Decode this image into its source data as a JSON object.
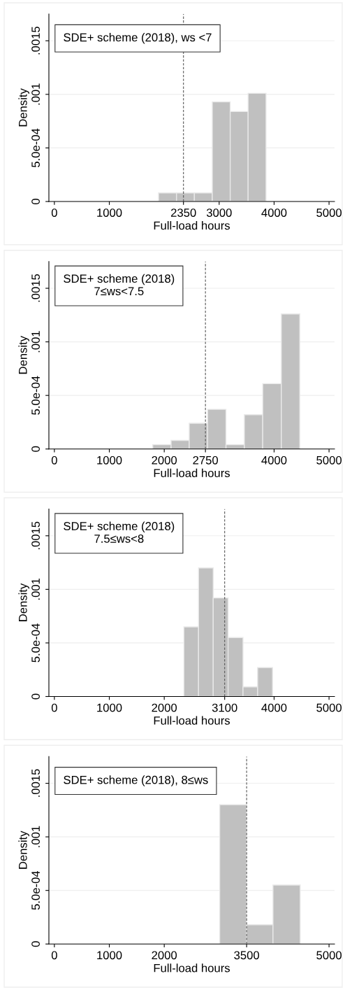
{
  "chart_data": [
    {
      "type": "histogram",
      "annotations": [
        "SDE+ scheme (2018), ws <7"
      ],
      "xlabel": "Full-load hours",
      "ylabel": "Density",
      "color": "#c0c0c0",
      "grid": "y",
      "bins": [
        1897,
        2223,
        2549,
        2875,
        3201,
        3527,
        3853
      ],
      "values": [
        8e-05,
        8e-05,
        8e-05,
        0.00093,
        0.00084,
        0.00101
      ],
      "xlim": [
        -100,
        5100
      ],
      "ylim": [
        0,
        0.00175
      ],
      "xticks": [
        0,
        1000,
        2350,
        3000,
        4000,
        5000
      ],
      "yticks": [
        {
          "value": 0,
          "label": "0"
        },
        {
          "value": 0.0005,
          "label": "5.0e-04"
        },
        {
          "value": 0.001,
          "label": ".001"
        },
        {
          "value": 0.0015,
          "label": ".0015"
        }
      ],
      "ref_lines": [
        {
          "axis": "x",
          "value": 2350,
          "line_style": "dashed",
          "color": "#555555"
        }
      ]
    },
    {
      "type": "histogram",
      "annotations": [
        "SDE+ scheme (2018)\n7≤ws<7.5"
      ],
      "xlabel": "Full-load hours",
      "ylabel": "Density",
      "color": "#c0c0c0",
      "grid": "y",
      "bins": [
        1791,
        2125,
        2455,
        2790,
        3124,
        3459,
        3793,
        4132,
        4467
      ],
      "values": [
        4e-05,
        8e-05,
        0.00024,
        0.00037,
        4e-05,
        0.00032,
        0.00061,
        0.00126
      ],
      "xlim": [
        -100,
        5100
      ],
      "ylim": [
        0,
        0.00175
      ],
      "xticks": [
        0,
        1000,
        2000,
        2750,
        4000,
        5000
      ],
      "yticks": [
        {
          "value": 0,
          "label": "0"
        },
        {
          "value": 0.0005,
          "label": "5.0e-04"
        },
        {
          "value": 0.001,
          "label": ".001"
        },
        {
          "value": 0.0015,
          "label": ".0015"
        }
      ],
      "ref_lines": [
        {
          "axis": "x",
          "value": 2750,
          "line_style": "dashed",
          "color": "#555555"
        }
      ]
    },
    {
      "type": "histogram",
      "annotations": [
        "SDE+ scheme (2018)\n7.5≤ws<8"
      ],
      "xlabel": "Full-load hours",
      "ylabel": "Density",
      "color": "#c0c0c0",
      "grid": "y",
      "bins": [
        2358,
        2625,
        2892,
        3163,
        3434,
        3700,
        3971
      ],
      "values": [
        0.00065,
        0.0012,
        0.00092,
        0.00055,
        9e-05,
        0.00027
      ],
      "xlim": [
        -100,
        5100
      ],
      "ylim": [
        0,
        0.00175
      ],
      "xticks": [
        0,
        1000,
        2000,
        3100,
        4000,
        5000
      ],
      "yticks": [
        {
          "value": 0,
          "label": "0"
        },
        {
          "value": 0.0005,
          "label": "5.0e-04"
        },
        {
          "value": 0.001,
          "label": ".001"
        },
        {
          "value": 0.0015,
          "label": ".0015"
        }
      ],
      "ref_lines": [
        {
          "axis": "x",
          "value": 3100,
          "line_style": "dashed",
          "color": "#555555"
        }
      ]
    },
    {
      "type": "histogram",
      "annotations": [
        "SDE+ scheme (2018), 8≤ws"
      ],
      "xlabel": "Full-load hours",
      "ylabel": "Density",
      "color": "#c0c0c0",
      "grid": "y",
      "bins": [
        3010,
        3497,
        3980,
        4475
      ],
      "values": [
        0.0013,
        0.00018,
        0.00055
      ],
      "xlim": [
        -100,
        5100
      ],
      "ylim": [
        0,
        0.00175
      ],
      "xticks": [
        0,
        1000,
        2000,
        3500,
        5000
      ],
      "yticks": [
        {
          "value": 0,
          "label": "0"
        },
        {
          "value": 0.0005,
          "label": "5.0e-04"
        },
        {
          "value": 0.001,
          "label": ".001"
        },
        {
          "value": 0.0015,
          "label": ".0015"
        }
      ],
      "ref_lines": [
        {
          "axis": "x",
          "value": 3500,
          "line_style": "dashed",
          "color": "#555555"
        }
      ]
    }
  ]
}
